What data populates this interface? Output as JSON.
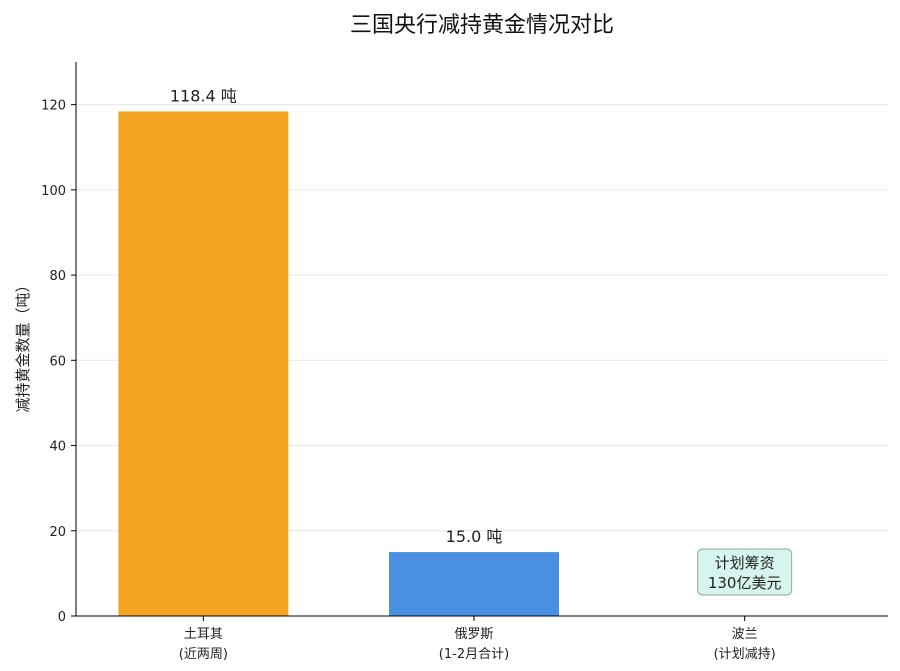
{
  "chart_data": {
    "type": "bar",
    "title": "三国央行减持黄金情况对比",
    "ylabel": "减持黄金数量（吨）",
    "xlabel": "",
    "ylim": [
      0,
      130
    ],
    "yticks": [
      0,
      20,
      40,
      60,
      80,
      100,
      120
    ],
    "grid": "horizontal",
    "categories": [
      {
        "line1": "土耳其",
        "line2": "(近两周)"
      },
      {
        "line1": "俄罗斯",
        "line2": "(1-2月合计)"
      },
      {
        "line1": "波兰",
        "line2": "(计划减持)"
      }
    ],
    "values": [
      118.4,
      15.0,
      null
    ],
    "data_labels": [
      "118.4 吨",
      "15.0 吨",
      ""
    ],
    "colors": [
      "#F4A623",
      "#4A90E2",
      "#7ED6C4"
    ],
    "annotation": {
      "category_index": 2,
      "lines": [
        "计划筹资",
        "130亿美元"
      ],
      "background": "#D6F5EE",
      "border": "#8FA8A0"
    }
  }
}
